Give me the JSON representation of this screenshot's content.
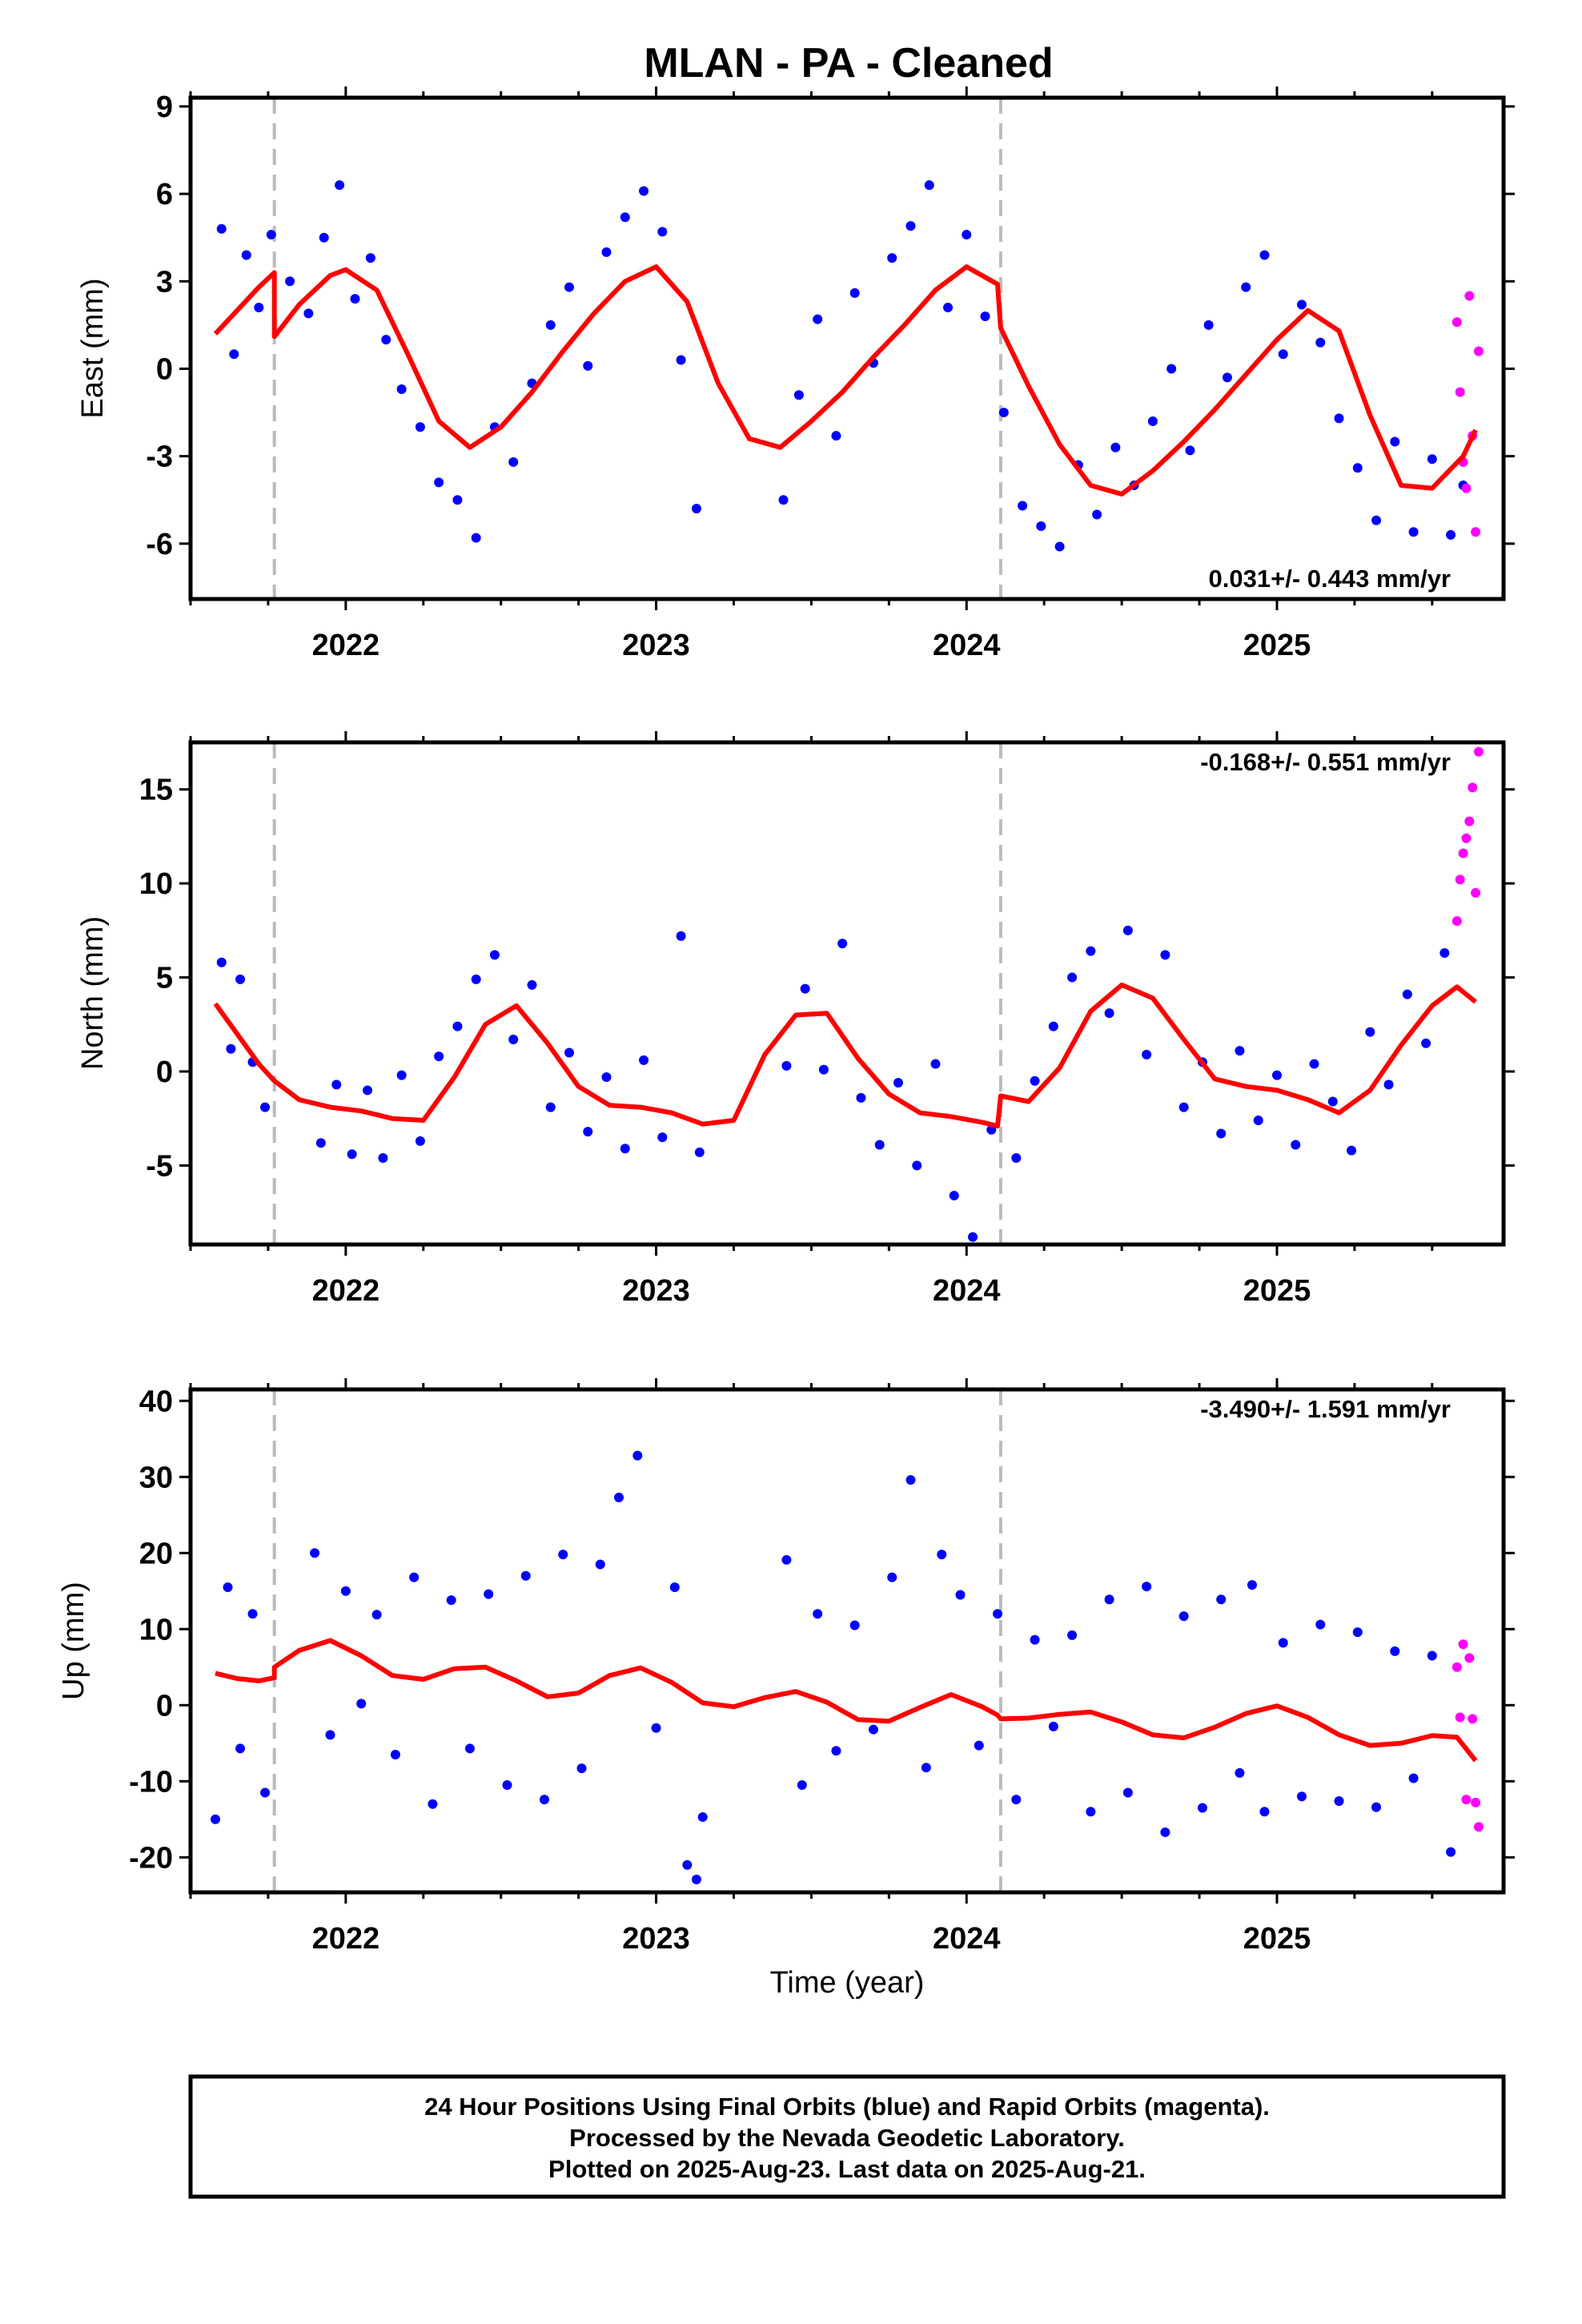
{
  "title": "MLAN  - PA - Cleaned",
  "colors": {
    "final": "#0000ff",
    "rapid": "#ff00ff",
    "model": "#ff0000",
    "breaks": "#bbbbbb",
    "frame": "#000000"
  },
  "xlabel": "Time (year)",
  "footer": {
    "line1": "24 Hour Positions Using Final Orbits (blue) and Rapid Orbits (magenta).",
    "line2": "Processed by the Nevada Geodetic Laboratory.",
    "line3": "Plotted on 2025-Aug-23. Last data on 2025-Aug-21."
  },
  "chart_data": [
    {
      "type": "scatter",
      "component": "east",
      "ylabel": "East (mm)",
      "rate": "0.031+/- 0.443 mm/yr",
      "rate_position": "bottom-right",
      "xlim": [
        2021.5,
        2025.73
      ],
      "ylim": [
        -7.9,
        9.3
      ],
      "xticks": [
        2022,
        2023,
        2024,
        2025
      ],
      "yticks": [
        -6,
        -3,
        0,
        3,
        6,
        9
      ],
      "breaks": [
        2021.77,
        2024.11
      ],
      "model": {
        "name": "model fit",
        "x": [
          2021.58,
          2021.65,
          2021.72,
          2021.77,
          2021.77,
          2021.85,
          2021.95,
          2022.0,
          2022.1,
          2022.2,
          2022.3,
          2022.4,
          2022.5,
          2022.6,
          2022.7,
          2022.8,
          2022.9,
          2023.0,
          2023.1,
          2023.2,
          2023.3,
          2023.4,
          2023.5,
          2023.6,
          2023.7,
          2023.8,
          2023.9,
          2024.0,
          2024.1,
          2024.11,
          2024.2,
          2024.3,
          2024.4,
          2024.5,
          2024.6,
          2024.7,
          2024.8,
          2024.9,
          2025.0,
          2025.1,
          2025.2,
          2025.3,
          2025.4,
          2025.5,
          2025.6,
          2025.64
        ],
        "y": [
          1.2,
          2.0,
          2.8,
          3.3,
          1.1,
          2.2,
          3.2,
          3.4,
          2.7,
          0.5,
          -1.8,
          -2.7,
          -2.0,
          -0.8,
          0.6,
          1.9,
          3.0,
          3.5,
          2.3,
          -0.5,
          -2.4,
          -2.7,
          -1.8,
          -0.8,
          0.4,
          1.5,
          2.7,
          3.5,
          2.9,
          1.4,
          -0.6,
          -2.6,
          -4.0,
          -4.3,
          -3.5,
          -2.5,
          -1.4,
          -0.2,
          1.0,
          2.0,
          1.3,
          -1.6,
          -4.0,
          -4.1,
          -3.0,
          -2.1
        ]
      },
      "final_points": {
        "x": [
          2021.6,
          2021.64,
          2021.68,
          2021.72,
          2021.76,
          2021.82,
          2021.88,
          2021.93,
          2021.98,
          2022.03,
          2022.08,
          2022.13,
          2022.18,
          2022.24,
          2022.3,
          2022.36,
          2022.42,
          2022.48,
          2022.54,
          2022.6,
          2022.66,
          2022.72,
          2022.78,
          2022.84,
          2022.9,
          2022.96,
          2023.02,
          2023.08,
          2023.13,
          2023.41,
          2023.46,
          2023.52,
          2023.58,
          2023.64,
          2023.7,
          2023.76,
          2023.82,
          2023.88,
          2023.94,
          2024.0,
          2024.06,
          2024.12,
          2024.18,
          2024.24,
          2024.3,
          2024.36,
          2024.42,
          2024.48,
          2024.54,
          2024.6,
          2024.66,
          2024.72,
          2024.78,
          2024.84,
          2024.9,
          2024.96,
          2025.02,
          2025.08,
          2025.14,
          2025.2,
          2025.26,
          2025.32,
          2025.38,
          2025.44,
          2025.5,
          2025.56,
          2025.6
        ],
        "y": [
          4.8,
          0.5,
          3.9,
          2.1,
          4.6,
          3.0,
          1.9,
          4.5,
          6.3,
          2.4,
          3.8,
          1.0,
          -0.7,
          -2.0,
          -3.9,
          -4.5,
          -5.8,
          -2.0,
          -3.2,
          -0.5,
          1.5,
          2.8,
          0.1,
          4.0,
          5.2,
          6.1,
          4.7,
          0.3,
          -4.8,
          -4.5,
          -0.9,
          1.7,
          -2.3,
          2.6,
          0.2,
          3.8,
          4.9,
          6.3,
          2.1,
          4.6,
          1.8,
          -1.5,
          -4.7,
          -5.4,
          -6.1,
          -3.3,
          -5.0,
          -2.7,
          -4.0,
          -1.8,
          0.0,
          -2.8,
          1.5,
          -0.3,
          2.8,
          3.9,
          0.5,
          2.2,
          0.9,
          -1.7,
          -3.4,
          -5.2,
          -2.5,
          -5.6,
          -3.1,
          -5.7,
          -4.0
        ]
      },
      "rapid_points": {
        "x": [
          2025.58,
          2025.59,
          2025.6,
          2025.61,
          2025.62,
          2025.63,
          2025.64,
          2025.65
        ],
        "y": [
          1.6,
          -0.8,
          -3.2,
          -4.1,
          2.5,
          -2.3,
          -5.6,
          0.6
        ]
      }
    },
    {
      "type": "scatter",
      "component": "north",
      "ylabel": "North (mm)",
      "rate": "-0.168+/- 0.551 mm/yr",
      "rate_position": "top-right",
      "xlim": [
        2021.5,
        2025.73
      ],
      "ylim": [
        -9.2,
        17.5
      ],
      "xticks": [
        2022,
        2023,
        2024,
        2025
      ],
      "yticks": [
        -5,
        0,
        5,
        10,
        15
      ],
      "breaks": [
        2021.77,
        2024.11
      ],
      "model": {
        "name": "model fit",
        "x": [
          2021.58,
          2021.65,
          2021.72,
          2021.77,
          2021.85,
          2021.95,
          2022.05,
          2022.15,
          2022.25,
          2022.35,
          2022.45,
          2022.55,
          2022.65,
          2022.75,
          2022.85,
          2022.95,
          2023.05,
          2023.15,
          2023.25,
          2023.35,
          2023.45,
          2023.55,
          2023.65,
          2023.75,
          2023.85,
          2023.95,
          2024.05,
          2024.1,
          2024.11,
          2024.2,
          2024.3,
          2024.4,
          2024.5,
          2024.6,
          2024.7,
          2024.8,
          2024.9,
          2025.0,
          2025.1,
          2025.2,
          2025.3,
          2025.4,
          2025.5,
          2025.58,
          2025.64
        ],
        "y": [
          3.6,
          2.0,
          0.4,
          -0.5,
          -1.5,
          -1.9,
          -2.1,
          -2.5,
          -2.6,
          -0.3,
          2.5,
          3.5,
          1.5,
          -0.8,
          -1.8,
          -1.9,
          -2.2,
          -2.8,
          -2.6,
          0.9,
          3.0,
          3.1,
          0.7,
          -1.2,
          -2.2,
          -2.4,
          -2.7,
          -2.9,
          -1.3,
          -1.6,
          0.2,
          3.2,
          4.6,
          3.9,
          1.7,
          -0.4,
          -0.8,
          -1.0,
          -1.5,
          -2.2,
          -1.0,
          1.4,
          3.5,
          4.5,
          3.7
        ]
      },
      "final_points": {
        "x": [
          2021.6,
          2021.63,
          2021.66,
          2021.7,
          2021.74,
          2021.92,
          2021.97,
          2022.02,
          2022.07,
          2022.12,
          2022.18,
          2022.24,
          2022.3,
          2022.36,
          2022.42,
          2022.48,
          2022.54,
          2022.6,
          2022.66,
          2022.72,
          2022.78,
          2022.84,
          2022.9,
          2022.96,
          2023.02,
          2023.08,
          2023.14,
          2023.42,
          2023.48,
          2023.54,
          2023.6,
          2023.66,
          2023.72,
          2023.78,
          2023.84,
          2023.9,
          2023.96,
          2024.02,
          2024.08,
          2024.16,
          2024.22,
          2024.28,
          2024.34,
          2024.4,
          2024.46,
          2024.52,
          2024.58,
          2024.64,
          2024.7,
          2024.76,
          2024.82,
          2024.88,
          2024.94,
          2025.0,
          2025.06,
          2025.12,
          2025.18,
          2025.24,
          2025.3,
          2025.36,
          2025.42,
          2025.48,
          2025.54
        ],
        "y": [
          5.8,
          1.2,
          4.9,
          0.5,
          -1.9,
          -3.8,
          -0.7,
          -4.4,
          -1.0,
          -4.6,
          -0.2,
          -3.7,
          0.8,
          2.4,
          4.9,
          6.2,
          1.7,
          4.6,
          -1.9,
          1.0,
          -3.2,
          -0.3,
          -4.1,
          0.6,
          -3.5,
          7.2,
          -4.3,
          0.3,
          4.4,
          0.1,
          6.8,
          -1.4,
          -3.9,
          -0.6,
          -5.0,
          0.4,
          -6.6,
          -8.8,
          -3.1,
          -4.6,
          -0.5,
          2.4,
          5.0,
          6.4,
          3.1,
          7.5,
          0.9,
          6.2,
          -1.9,
          0.5,
          -3.3,
          1.1,
          -2.6,
          -0.2,
          -3.9,
          0.4,
          -1.6,
          -4.2,
          2.1,
          -0.7,
          4.1,
          1.5,
          6.3
        ]
      },
      "rapid_points": {
        "x": [
          2025.58,
          2025.59,
          2025.6,
          2025.61,
          2025.62,
          2025.63,
          2025.64,
          2025.65
        ],
        "y": [
          8.0,
          10.2,
          11.6,
          12.4,
          13.3,
          15.1,
          9.5,
          17.0
        ]
      }
    },
    {
      "type": "scatter",
      "component": "up",
      "ylabel": "Up (mm)",
      "rate": "-3.490+/- 1.591 mm/yr",
      "rate_position": "top-right",
      "xlim": [
        2021.5,
        2025.73
      ],
      "ylim": [
        -24.6,
        41.5
      ],
      "xticks": [
        2022,
        2023,
        2024,
        2025
      ],
      "yticks": [
        -20,
        -10,
        0,
        10,
        20,
        30,
        40
      ],
      "breaks": [
        2021.77,
        2024.11
      ],
      "model": {
        "name": "model fit",
        "x": [
          2021.58,
          2021.65,
          2021.72,
          2021.77,
          2021.77,
          2021.85,
          2021.95,
          2022.05,
          2022.15,
          2022.25,
          2022.35,
          2022.45,
          2022.55,
          2022.65,
          2022.75,
          2022.85,
          2022.95,
          2023.05,
          2023.15,
          2023.25,
          2023.35,
          2023.45,
          2023.55,
          2023.65,
          2023.75,
          2023.85,
          2023.95,
          2024.05,
          2024.1,
          2024.11,
          2024.2,
          2024.3,
          2024.4,
          2024.5,
          2024.6,
          2024.7,
          2024.8,
          2024.9,
          2025.0,
          2025.1,
          2025.2,
          2025.3,
          2025.4,
          2025.5,
          2025.58,
          2025.64
        ],
        "y": [
          4.2,
          3.5,
          3.2,
          3.6,
          5.0,
          7.2,
          8.5,
          6.5,
          3.9,
          3.4,
          4.8,
          5.0,
          3.2,
          1.1,
          1.6,
          3.9,
          4.9,
          3.0,
          0.3,
          -0.2,
          1.0,
          1.8,
          0.4,
          -1.9,
          -2.1,
          -0.3,
          1.4,
          -0.2,
          -1.3,
          -1.8,
          -1.7,
          -1.2,
          -0.9,
          -2.2,
          -3.9,
          -4.3,
          -2.9,
          -1.1,
          -0.1,
          -1.6,
          -3.9,
          -5.3,
          -5.0,
          -4.0,
          -4.2,
          -7.3
        ]
      },
      "final_points": {
        "x": [
          2021.58,
          2021.62,
          2021.66,
          2021.7,
          2021.74,
          2021.9,
          2021.95,
          2022.0,
          2022.05,
          2022.1,
          2022.16,
          2022.22,
          2022.28,
          2022.34,
          2022.4,
          2022.46,
          2022.52,
          2022.58,
          2022.64,
          2022.7,
          2022.76,
          2022.82,
          2022.88,
          2022.94,
          2023.0,
          2023.06,
          2023.1,
          2023.13,
          2023.15,
          2023.42,
          2023.47,
          2023.52,
          2023.58,
          2023.64,
          2023.7,
          2023.76,
          2023.82,
          2023.87,
          2023.92,
          2023.98,
          2024.04,
          2024.1,
          2024.16,
          2024.22,
          2024.28,
          2024.34,
          2024.4,
          2024.46,
          2024.52,
          2024.58,
          2024.64,
          2024.7,
          2024.76,
          2024.82,
          2024.88,
          2024.92,
          2024.96,
          2025.02,
          2025.08,
          2025.14,
          2025.2,
          2025.26,
          2025.32,
          2025.38,
          2025.44,
          2025.5,
          2025.56
        ],
        "y": [
          -15.0,
          15.5,
          -5.7,
          12.0,
          -11.5,
          20.0,
          -3.9,
          15.0,
          0.2,
          11.9,
          -6.5,
          16.8,
          -13.0,
          13.8,
          -5.7,
          14.6,
          -10.5,
          17.0,
          -12.4,
          19.8,
          -8.3,
          18.5,
          27.3,
          32.8,
          -3.0,
          15.5,
          -21.0,
          -22.9,
          -14.7,
          19.1,
          -10.5,
          12.0,
          -6.0,
          10.5,
          -3.2,
          16.8,
          29.6,
          -8.2,
          19.8,
          14.5,
          -5.3,
          12.0,
          -12.4,
          8.6,
          -2.8,
          9.2,
          -14.0,
          13.9,
          -11.5,
          15.6,
          -16.7,
          11.7,
          -13.5,
          13.9,
          -8.9,
          15.8,
          -14.0,
          8.2,
          -12.0,
          10.6,
          -12.6,
          9.6,
          -13.4,
          7.1,
          -9.6,
          6.5,
          -19.3
        ]
      },
      "rapid_points": {
        "x": [
          2025.58,
          2025.59,
          2025.6,
          2025.61,
          2025.62,
          2025.63,
          2025.64,
          2025.65
        ],
        "y": [
          5.0,
          -1.6,
          8.0,
          -12.4,
          6.2,
          -1.8,
          -12.8,
          -16.0
        ]
      }
    }
  ]
}
